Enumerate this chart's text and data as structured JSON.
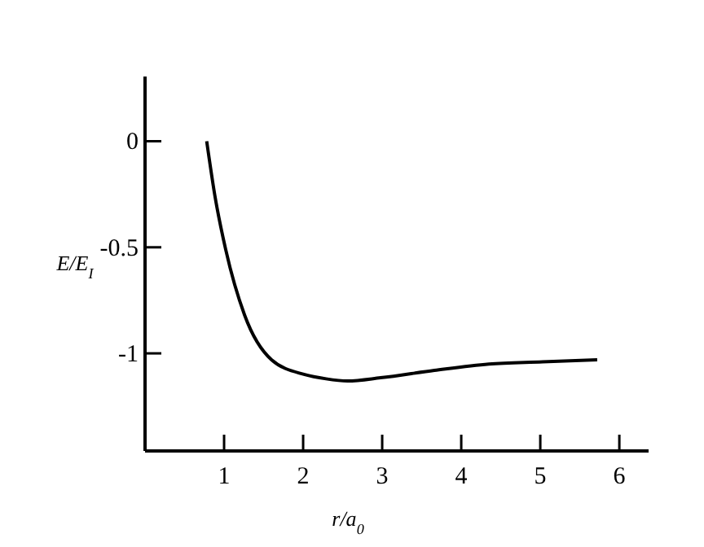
{
  "chart_data": {
    "type": "line",
    "xlabel": "r/a$_{0}$",
    "ylabel": "E/E$_{I}$",
    "xlim": [
      0,
      6.37
    ],
    "ylim": [
      -1.46,
      0.305
    ],
    "xticks": [
      1,
      2,
      3,
      4,
      5,
      6
    ],
    "yticks": [
      0,
      -0.5,
      -1
    ],
    "series": [
      {
        "color": "#000000",
        "x": [
          0.78,
          0.885,
          1.02,
          1.26,
          1.6,
          2.02,
          2.29,
          2.56,
          2.98,
          3.66,
          4.35,
          5.03,
          5.72
        ],
        "values": [
          0,
          -0.26,
          -0.51,
          -0.82,
          -1.03,
          -1.1,
          -1.12,
          -1.13,
          -1.115,
          -1.08,
          -1.05,
          -1.04,
          -1.03
        ]
      }
    ],
    "marker": "none",
    "line_style": "solid"
  }
}
